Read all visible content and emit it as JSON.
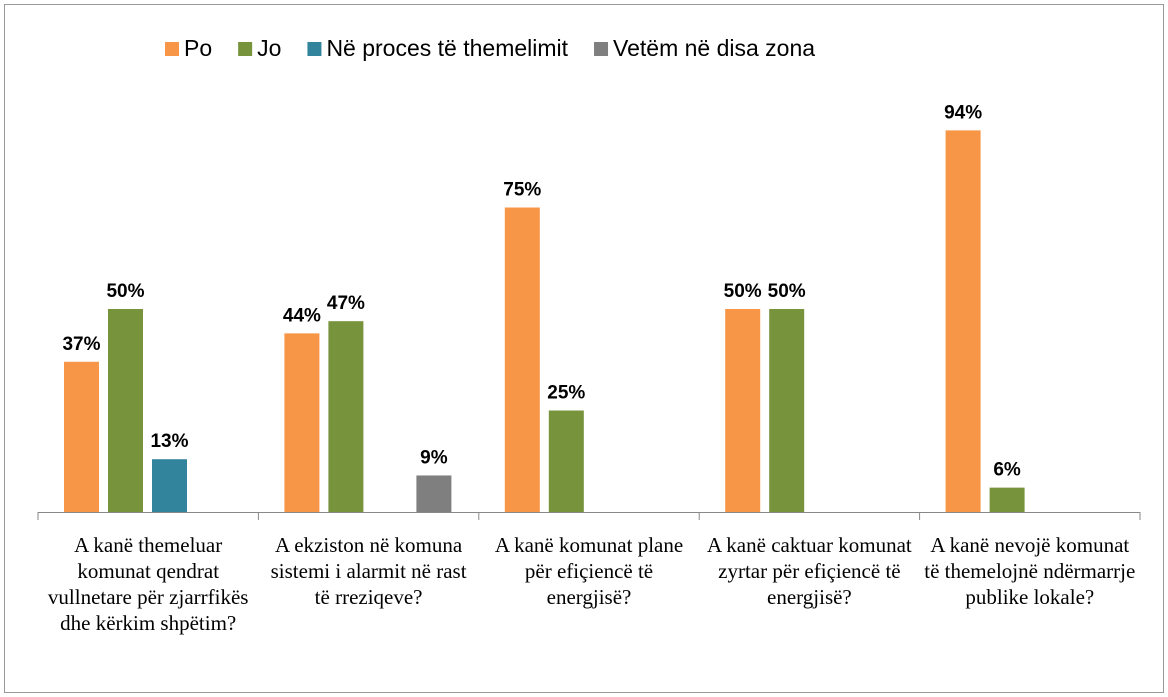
{
  "chart_data": {
    "type": "bar",
    "categories": [
      "A kanë themeluar komunat qendrat vullnetare për zjarrfikës dhe kërkim shpëtim?",
      "A ekziston në komuna sistemi i alarmit në rast të rreziqeve?",
      "A kanë komunat plane për efiçiencë të energjisë?",
      "A kanë caktuar komunat zyrtar për efiçiencë të energjisë?",
      "A kanë nevojë komunat të themelojnë ndërmarrje publike lokale?"
    ],
    "series": [
      {
        "name": "Po",
        "color": "#f79646",
        "values": [
          37,
          44,
          75,
          50,
          94
        ],
        "value_labels": [
          "37%",
          "44%",
          "75%",
          "50%",
          "94%"
        ]
      },
      {
        "name": "Jo",
        "color": "#77933c",
        "values": [
          50,
          47,
          25,
          50,
          6
        ],
        "value_labels": [
          "50%",
          "47%",
          "25%",
          "50%",
          "6%"
        ]
      },
      {
        "name": "Në proces të themelimit",
        "color": "#31849b",
        "values": [
          13,
          null,
          null,
          null,
          null
        ],
        "value_labels": [
          "13%",
          null,
          null,
          null,
          null
        ]
      },
      {
        "name": "Vetëm në disa zona",
        "color": "#7f7f7f",
        "values": [
          null,
          9,
          null,
          null,
          null
        ],
        "value_labels": [
          null,
          "9%",
          null,
          null,
          null
        ]
      }
    ],
    "ylim": [
      0,
      100
    ],
    "legend": "top"
  }
}
